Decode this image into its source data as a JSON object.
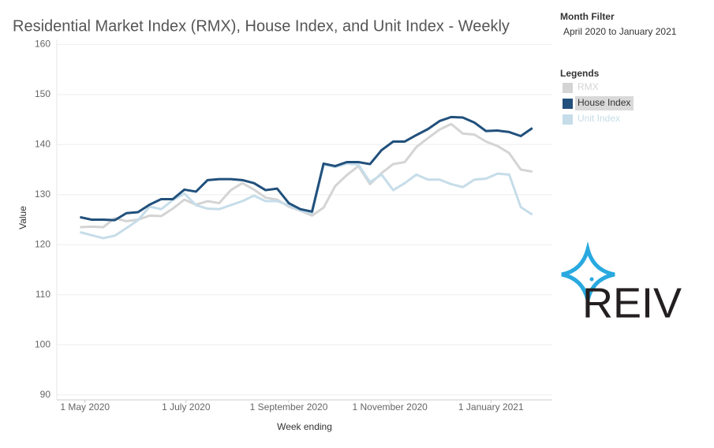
{
  "chart_data": {
    "type": "line",
    "title": "Residential Market Index (RMX), House Index, and Unit Index - Weekly",
    "x_label": "Week ending",
    "y_label": "Value",
    "x": [
      "2020-04-28",
      "2020-05-05",
      "2020-05-12",
      "2020-05-19",
      "2020-05-26",
      "2020-06-02",
      "2020-06-09",
      "2020-06-16",
      "2020-06-23",
      "2020-06-30",
      "2020-07-07",
      "2020-07-14",
      "2020-07-21",
      "2020-07-28",
      "2020-08-04",
      "2020-08-11",
      "2020-08-18",
      "2020-08-25",
      "2020-09-01",
      "2020-09-08",
      "2020-09-15",
      "2020-09-22",
      "2020-09-29",
      "2020-10-06",
      "2020-10-13",
      "2020-10-20",
      "2020-10-27",
      "2020-11-03",
      "2020-11-10",
      "2020-11-17",
      "2020-11-24",
      "2020-12-01",
      "2020-12-08",
      "2020-12-15",
      "2020-12-22",
      "2020-12-29",
      "2021-01-05",
      "2021-01-12",
      "2021-01-19",
      "2021-01-26"
    ],
    "xlim": [
      "2020-04-14",
      "2021-02-07"
    ],
    "xticks": [
      {
        "value": "2020-05-01",
        "label": "1 May 2020"
      },
      {
        "value": "2020-07-01",
        "label": "1 July 2020"
      },
      {
        "value": "2020-09-01",
        "label": "1 September 2020"
      },
      {
        "value": "2020-11-01",
        "label": "1 November 2020"
      },
      {
        "value": "2021-01-01",
        "label": "1 January 2021"
      }
    ],
    "ylim": [
      89,
      161
    ],
    "yticks": [
      90,
      100,
      110,
      120,
      130,
      140,
      150,
      160
    ],
    "grid": true,
    "series": [
      {
        "name": "RMX",
        "color": "#d4d4d4",
        "values": [
          123.5,
          123.6,
          123.5,
          125.3,
          124.7,
          125.0,
          125.8,
          125.7,
          127.2,
          129.0,
          128.0,
          128.7,
          128.3,
          130.9,
          132.3,
          131.0,
          129.4,
          129.0,
          127.6,
          126.8,
          125.8,
          127.4,
          131.7,
          133.9,
          135.7,
          132.1,
          134.3,
          136.1,
          136.5,
          139.5,
          141.3,
          143.0,
          144.1,
          142.2,
          142.0,
          140.6,
          139.7,
          138.3,
          135.0,
          134.6
        ]
      },
      {
        "name": "Unit Index",
        "color": "#c6dde9",
        "values": [
          122.5,
          121.9,
          121.3,
          121.8,
          123.3,
          124.9,
          127.6,
          127.1,
          128.9,
          130.2,
          127.9,
          127.2,
          127.1,
          127.9,
          128.7,
          129.8,
          128.7,
          128.7,
          127.9,
          126.8,
          126.3,
          136.0,
          135.5,
          136.2,
          136.0,
          132.5,
          134.0,
          130.9,
          132.3,
          134.0,
          133.0,
          133.0,
          132.1,
          131.5,
          133.0,
          133.2,
          134.2,
          134.0,
          127.5,
          126.0
        ]
      },
      {
        "name": "House Index",
        "color": "#21507c",
        "selected": true,
        "values": [
          125.5,
          125.0,
          125.0,
          124.9,
          126.3,
          126.5,
          128.0,
          129.1,
          129.1,
          131.0,
          130.6,
          132.9,
          133.1,
          133.1,
          132.9,
          132.3,
          130.9,
          131.2,
          128.3,
          127.1,
          126.6,
          136.2,
          135.7,
          136.5,
          136.5,
          136.1,
          138.9,
          140.6,
          140.6,
          141.9,
          143.1,
          144.7,
          145.5,
          145.4,
          144.4,
          142.7,
          142.8,
          142.5,
          141.7,
          143.3
        ]
      }
    ],
    "filter_title": "Month Filter",
    "filter_value": "April 2020 to January 2021",
    "legend_title": "Legends",
    "logo": "REIV"
  }
}
